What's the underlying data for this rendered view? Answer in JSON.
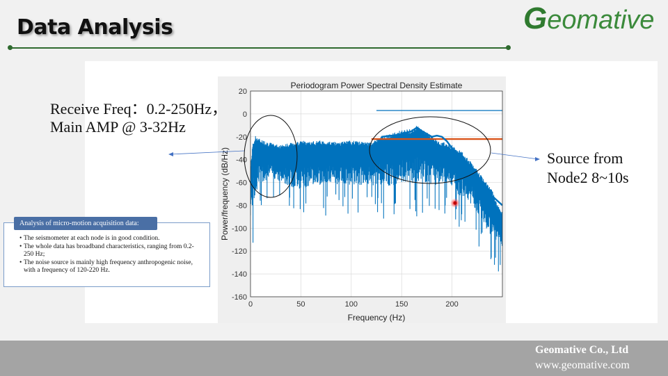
{
  "slide": {
    "title": "Data Analysis",
    "logo_initial": "G",
    "logo_rest": "eomative",
    "footer_company": "Geomative Co., Ltd",
    "footer_url": "www.geomative.com"
  },
  "annotations": {
    "left_line1": "Receive Freq：0.2-250Hz，",
    "left_line2": "Main AMP @ 3-32Hz",
    "right_line1": "Source from",
    "right_line2": "Node2 8~10s"
  },
  "info_box": {
    "heading": "Analysis of micro-motion acquisition data:",
    "items": [
      "The seismometer at each node is in good condition.",
      "The whole data has broadband characteristics, ranging from 0.2-250 Hz;",
      "The noise source is mainly high frequency anthropogenic noise, with a frequency of 120-220 Hz."
    ]
  },
  "colors": {
    "series": "#0072bd",
    "orange": "#d95319",
    "accent_green": "#2f6a2f"
  },
  "chart_data": {
    "type": "line",
    "title": "Periodogram Power Spectral Density Estimate",
    "xlabel": "Frequency (Hz)",
    "ylabel": "Power/frequency (dB/Hz)",
    "xlim": [
      0,
      250
    ],
    "ylim": [
      -160,
      20
    ],
    "xticks": [
      0,
      50,
      100,
      150,
      200
    ],
    "yticks": [
      20,
      0,
      -20,
      -40,
      -60,
      -80,
      -100,
      -120,
      -140,
      -160
    ],
    "grid": true,
    "series": [
      {
        "upper": [
          [
            0,
            -50
          ],
          [
            2,
            -30
          ],
          [
            5,
            -22
          ],
          [
            10,
            -25
          ],
          [
            20,
            -28
          ],
          [
            30,
            -30
          ],
          [
            40,
            -28
          ],
          [
            50,
            -26
          ],
          [
            60,
            -27
          ],
          [
            70,
            -26
          ],
          [
            80,
            -27
          ],
          [
            90,
            -27
          ],
          [
            100,
            -26
          ],
          [
            110,
            -27
          ],
          [
            120,
            -28
          ],
          [
            125,
            -25
          ],
          [
            130,
            -22
          ],
          [
            140,
            -20
          ],
          [
            150,
            -17
          ],
          [
            160,
            -16
          ],
          [
            165,
            -13
          ],
          [
            170,
            -16
          ],
          [
            175,
            -18
          ],
          [
            180,
            -22
          ],
          [
            185,
            -26
          ],
          [
            190,
            -27
          ],
          [
            200,
            -30
          ],
          [
            210,
            -36
          ],
          [
            220,
            -46
          ],
          [
            230,
            -58
          ],
          [
            240,
            -70
          ],
          [
            245,
            -82
          ],
          [
            250,
            -88
          ]
        ],
        "lower": [
          [
            0,
            -100
          ],
          [
            3,
            -92
          ],
          [
            8,
            -70
          ],
          [
            15,
            -65
          ],
          [
            25,
            -63
          ],
          [
            35,
            -70
          ],
          [
            50,
            -75
          ],
          [
            60,
            -70
          ],
          [
            80,
            -70
          ],
          [
            100,
            -70
          ],
          [
            120,
            -70
          ],
          [
            130,
            -72
          ],
          [
            150,
            -72
          ],
          [
            170,
            -70
          ],
          [
            190,
            -70
          ],
          [
            200,
            -72
          ],
          [
            205,
            -78
          ],
          [
            210,
            -80
          ],
          [
            220,
            -88
          ],
          [
            230,
            -100
          ],
          [
            240,
            -120
          ],
          [
            245,
            -118
          ],
          [
            250,
            -125
          ]
        ]
      },
      {
        "points": [
          [
            125,
            3
          ],
          [
            250,
            3
          ]
        ]
      },
      {
        "points": [
          [
            120,
            -22
          ],
          [
            250,
            -22
          ]
        ]
      },
      {
        "points": [
          [
            130,
            -20
          ],
          [
            150,
            -18
          ],
          [
            160,
            -15
          ],
          [
            165,
            -12
          ],
          [
            170,
            -15
          ],
          [
            180,
            -20
          ],
          [
            185,
            -19
          ],
          [
            190,
            -20
          ],
          [
            195,
            -24
          ],
          [
            200,
            -30
          ],
          [
            205,
            -34
          ],
          [
            210,
            -37
          ],
          [
            220,
            -50
          ],
          [
            230,
            -60
          ],
          [
            240,
            -72
          ],
          [
            250,
            -80
          ]
        ]
      }
    ],
    "marker": {
      "x": 203,
      "y": -78
    }
  }
}
